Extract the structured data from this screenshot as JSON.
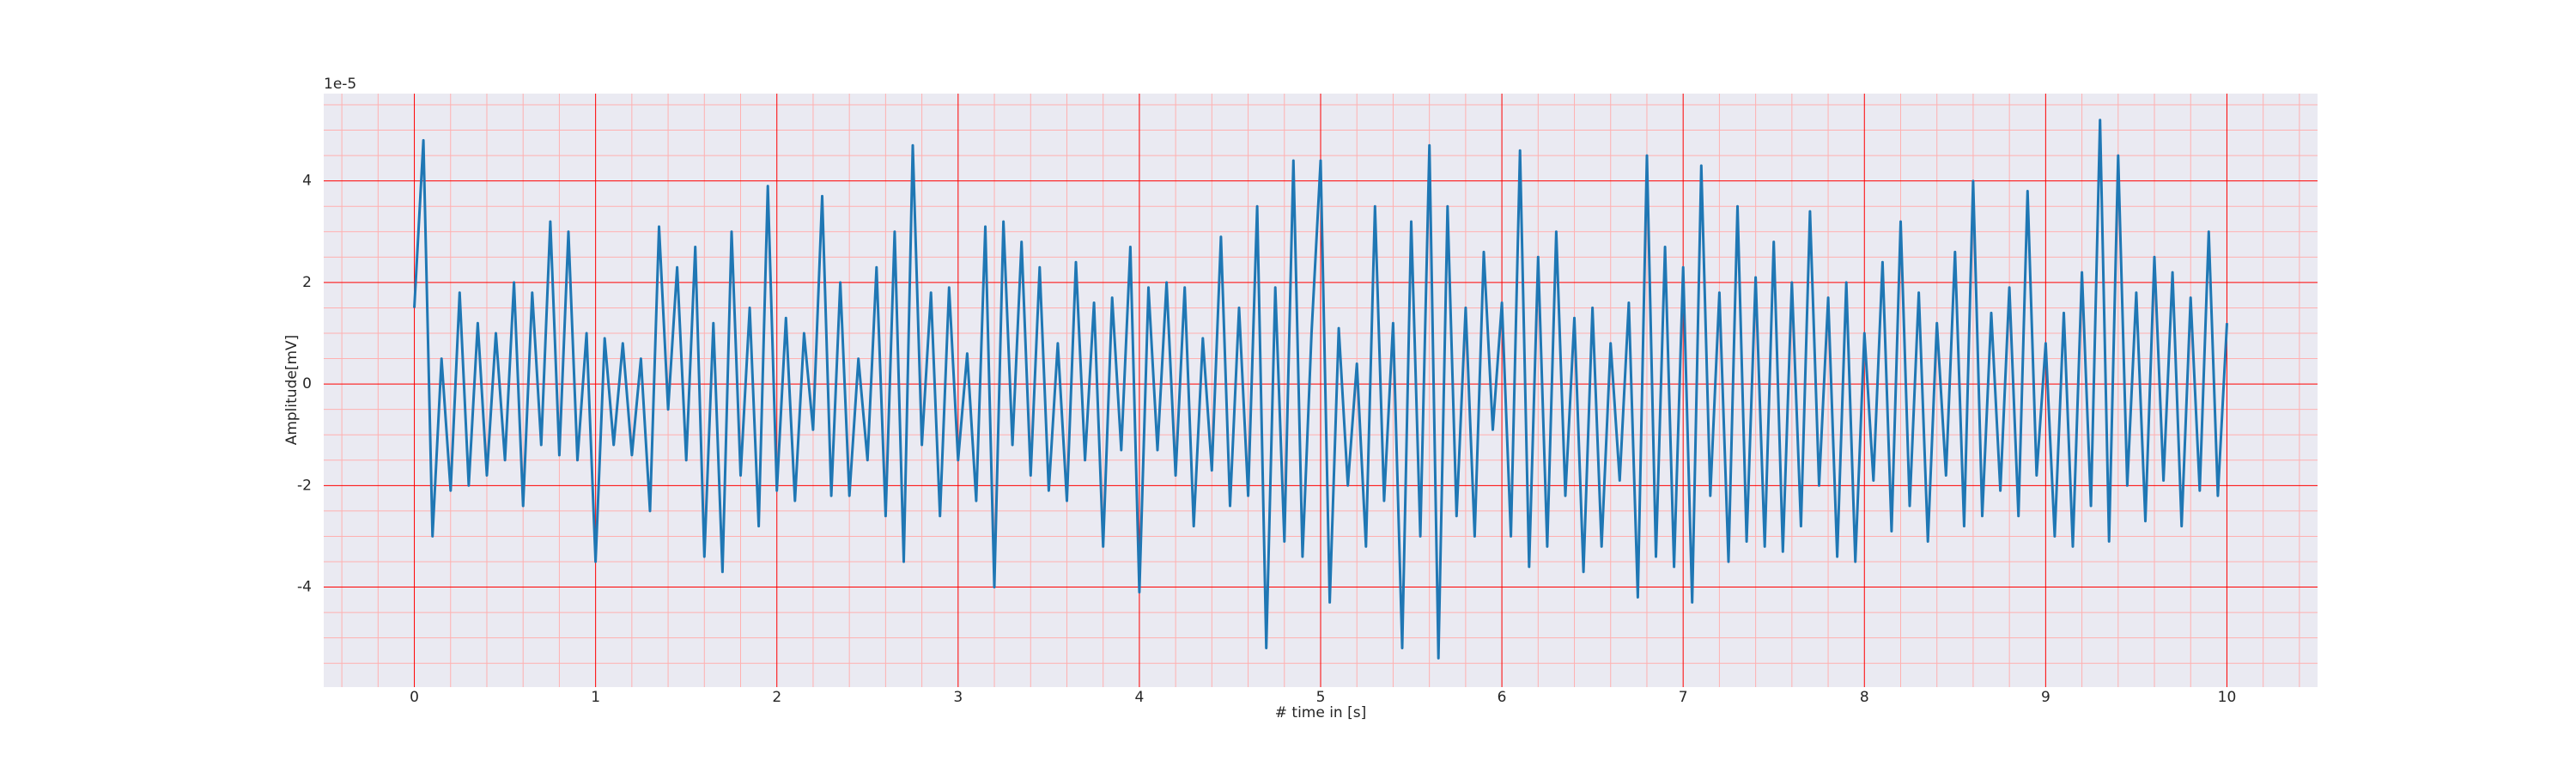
{
  "chart_data": {
    "type": "line",
    "xlabel": "# time in [s]",
    "ylabel": "Amplitude[mV]",
    "offset_label": "1e-5",
    "x": [
      0,
      0.05,
      0.1,
      0.15,
      0.2,
      0.25,
      0.3,
      0.35,
      0.4,
      0.45,
      0.5,
      0.55,
      0.6,
      0.65,
      0.7,
      0.75,
      0.8,
      0.85,
      0.9,
      0.95,
      1,
      1.05,
      1.1,
      1.15,
      1.2,
      1.25,
      1.3,
      1.35,
      1.4,
      1.45,
      1.5,
      1.55,
      1.6,
      1.65,
      1.7,
      1.75,
      1.8,
      1.85,
      1.9,
      1.95,
      2,
      2.05,
      2.1,
      2.15,
      2.2,
      2.25,
      2.3,
      2.35,
      2.4,
      2.45,
      2.5,
      2.55,
      2.6,
      2.65,
      2.7,
      2.75,
      2.8,
      2.85,
      2.9,
      2.95,
      3,
      3.05,
      3.1,
      3.15,
      3.2,
      3.25,
      3.3,
      3.35,
      3.4,
      3.45,
      3.5,
      3.55,
      3.6,
      3.65,
      3.7,
      3.75,
      3.8,
      3.85,
      3.9,
      3.95,
      4,
      4.05,
      4.1,
      4.15,
      4.2,
      4.25,
      4.3,
      4.35,
      4.4,
      4.45,
      4.5,
      4.55,
      4.6,
      4.65,
      4.7,
      4.75,
      4.8,
      4.85,
      4.9,
      4.95,
      5,
      5.05,
      5.1,
      5.15,
      5.2,
      5.25,
      5.3,
      5.35,
      5.4,
      5.45,
      5.5,
      5.55,
      5.6,
      5.65,
      5.7,
      5.75,
      5.8,
      5.85,
      5.9,
      5.95,
      6,
      6.05,
      6.1,
      6.15,
      6.2,
      6.25,
      6.3,
      6.35,
      6.4,
      6.45,
      6.5,
      6.55,
      6.6,
      6.65,
      6.7,
      6.75,
      6.8,
      6.85,
      6.9,
      6.95,
      7,
      7.05,
      7.1,
      7.15,
      7.2,
      7.25,
      7.3,
      7.35,
      7.4,
      7.45,
      7.5,
      7.55,
      7.6,
      7.65,
      7.7,
      7.75,
      7.8,
      7.85,
      7.9,
      7.95,
      8,
      8.05,
      8.1,
      8.15,
      8.2,
      8.25,
      8.3,
      8.35,
      8.4,
      8.45,
      8.5,
      8.55,
      8.6,
      8.65,
      8.7,
      8.75,
      8.8,
      8.85,
      8.9,
      8.95,
      9,
      9.05,
      9.1,
      9.15,
      9.2,
      9.25,
      9.3,
      9.35,
      9.4,
      9.45,
      9.5,
      9.55,
      9.6,
      9.65,
      9.7,
      9.75,
      9.8,
      9.85,
      9.9,
      9.95,
      10
    ],
    "series": [
      {
        "color": "#1f77b4",
        "values": [
          1.5,
          4.8,
          -3.0,
          0.5,
          -2.1,
          1.8,
          -2.0,
          1.2,
          -1.8,
          1.0,
          -1.5,
          2.0,
          -2.4,
          1.8,
          -1.2,
          3.2,
          -1.4,
          3.0,
          -1.5,
          1.0,
          -3.5,
          0.9,
          -1.2,
          0.8,
          -1.4,
          0.5,
          -2.5,
          3.1,
          -0.5,
          2.3,
          -1.5,
          2.7,
          -3.4,
          1.2,
          -3.7,
          3.0,
          -1.8,
          1.5,
          -2.8,
          3.9,
          -2.1,
          1.3,
          -2.3,
          1.0,
          -0.9,
          3.7,
          -2.2,
          2.0,
          -2.2,
          0.5,
          -1.5,
          2.3,
          -2.6,
          3.0,
          -3.5,
          4.7,
          -1.2,
          1.8,
          -2.6,
          1.9,
          -1.5,
          0.6,
          -2.3,
          3.1,
          -4.0,
          3.2,
          -1.2,
          2.8,
          -1.8,
          2.3,
          -2.1,
          0.8,
          -2.3,
          2.4,
          -1.5,
          1.6,
          -3.2,
          1.7,
          -1.3,
          2.7,
          -4.1,
          1.9,
          -1.3,
          2.0,
          -1.8,
          1.9,
          -2.8,
          0.9,
          -1.7,
          2.9,
          -2.4,
          1.5,
          -2.2,
          3.5,
          -5.2,
          1.9,
          -3.1,
          4.4,
          -3.4,
          1.0,
          4.4,
          -4.3,
          1.1,
          -2.0,
          0.4,
          -3.2,
          3.5,
          -2.3,
          1.2,
          -5.2,
          3.2,
          -3.0,
          4.7,
          -5.4,
          3.5,
          -2.6,
          1.5,
          -3.0,
          2.6,
          -0.9,
          1.6,
          -3.0,
          4.6,
          -3.6,
          2.5,
          -3.2,
          3.0,
          -2.2,
          1.3,
          -3.7,
          1.5,
          -3.2,
          0.8,
          -1.9,
          1.6,
          -4.2,
          4.5,
          -3.4,
          2.7,
          -3.6,
          2.3,
          -4.3,
          4.3,
          -2.2,
          1.8,
          -3.5,
          3.5,
          -3.1,
          2.1,
          -3.2,
          2.8,
          -3.3,
          2.0,
          -2.8,
          3.4,
          -2.0,
          1.7,
          -3.4,
          2.0,
          -3.5,
          1.0,
          -1.9,
          2.4,
          -2.9,
          3.2,
          -2.4,
          1.8,
          -3.1,
          1.2,
          -1.8,
          2.6,
          -2.8,
          4.0,
          -2.6,
          1.4,
          -2.1,
          1.9,
          -2.6,
          3.8,
          -1.8,
          0.8,
          -3.0,
          1.4,
          -3.2,
          2.2,
          -2.4,
          5.2,
          -3.1,
          4.5,
          -2.0,
          1.8,
          -2.7,
          2.5,
          -1.9,
          2.2,
          -2.8,
          1.7,
          -2.1,
          3.0,
          -2.2,
          1.2
        ]
      }
    ],
    "xlim": [
      -0.5,
      10.5
    ],
    "ylim": [
      -5.97,
      5.72
    ],
    "xticks": [
      0,
      1,
      2,
      3,
      4,
      5,
      6,
      7,
      8,
      9,
      10
    ],
    "yticks": [
      -4,
      -2,
      0,
      2,
      4
    ],
    "xminorticks": [
      -0.4,
      -0.2,
      0.2,
      0.4,
      0.6,
      0.8,
      1.2,
      1.4,
      1.6,
      1.8,
      2.2,
      2.4,
      2.6,
      2.8,
      3.2,
      3.4,
      3.6,
      3.8,
      4.2,
      4.4,
      4.6,
      4.8,
      5.2,
      5.4,
      5.6,
      5.8,
      6.2,
      6.4,
      6.6,
      6.8,
      7.2,
      7.4,
      7.6,
      7.8,
      8.2,
      8.4,
      8.6,
      8.8,
      9.2,
      9.4,
      9.6,
      9.8,
      10.2,
      10.4
    ],
    "yminorticks": [
      -5.5,
      -5,
      -4.5,
      -3.5,
      -3,
      -2.5,
      -1.5,
      -1,
      -0.5,
      0.5,
      1,
      1.5,
      2.5,
      3,
      3.5,
      4.5,
      5,
      5.5
    ],
    "grid": true,
    "grid_color": "#ff0000",
    "minor_grid_color": "#ffb0b0",
    "background": "#eaeaf2"
  }
}
